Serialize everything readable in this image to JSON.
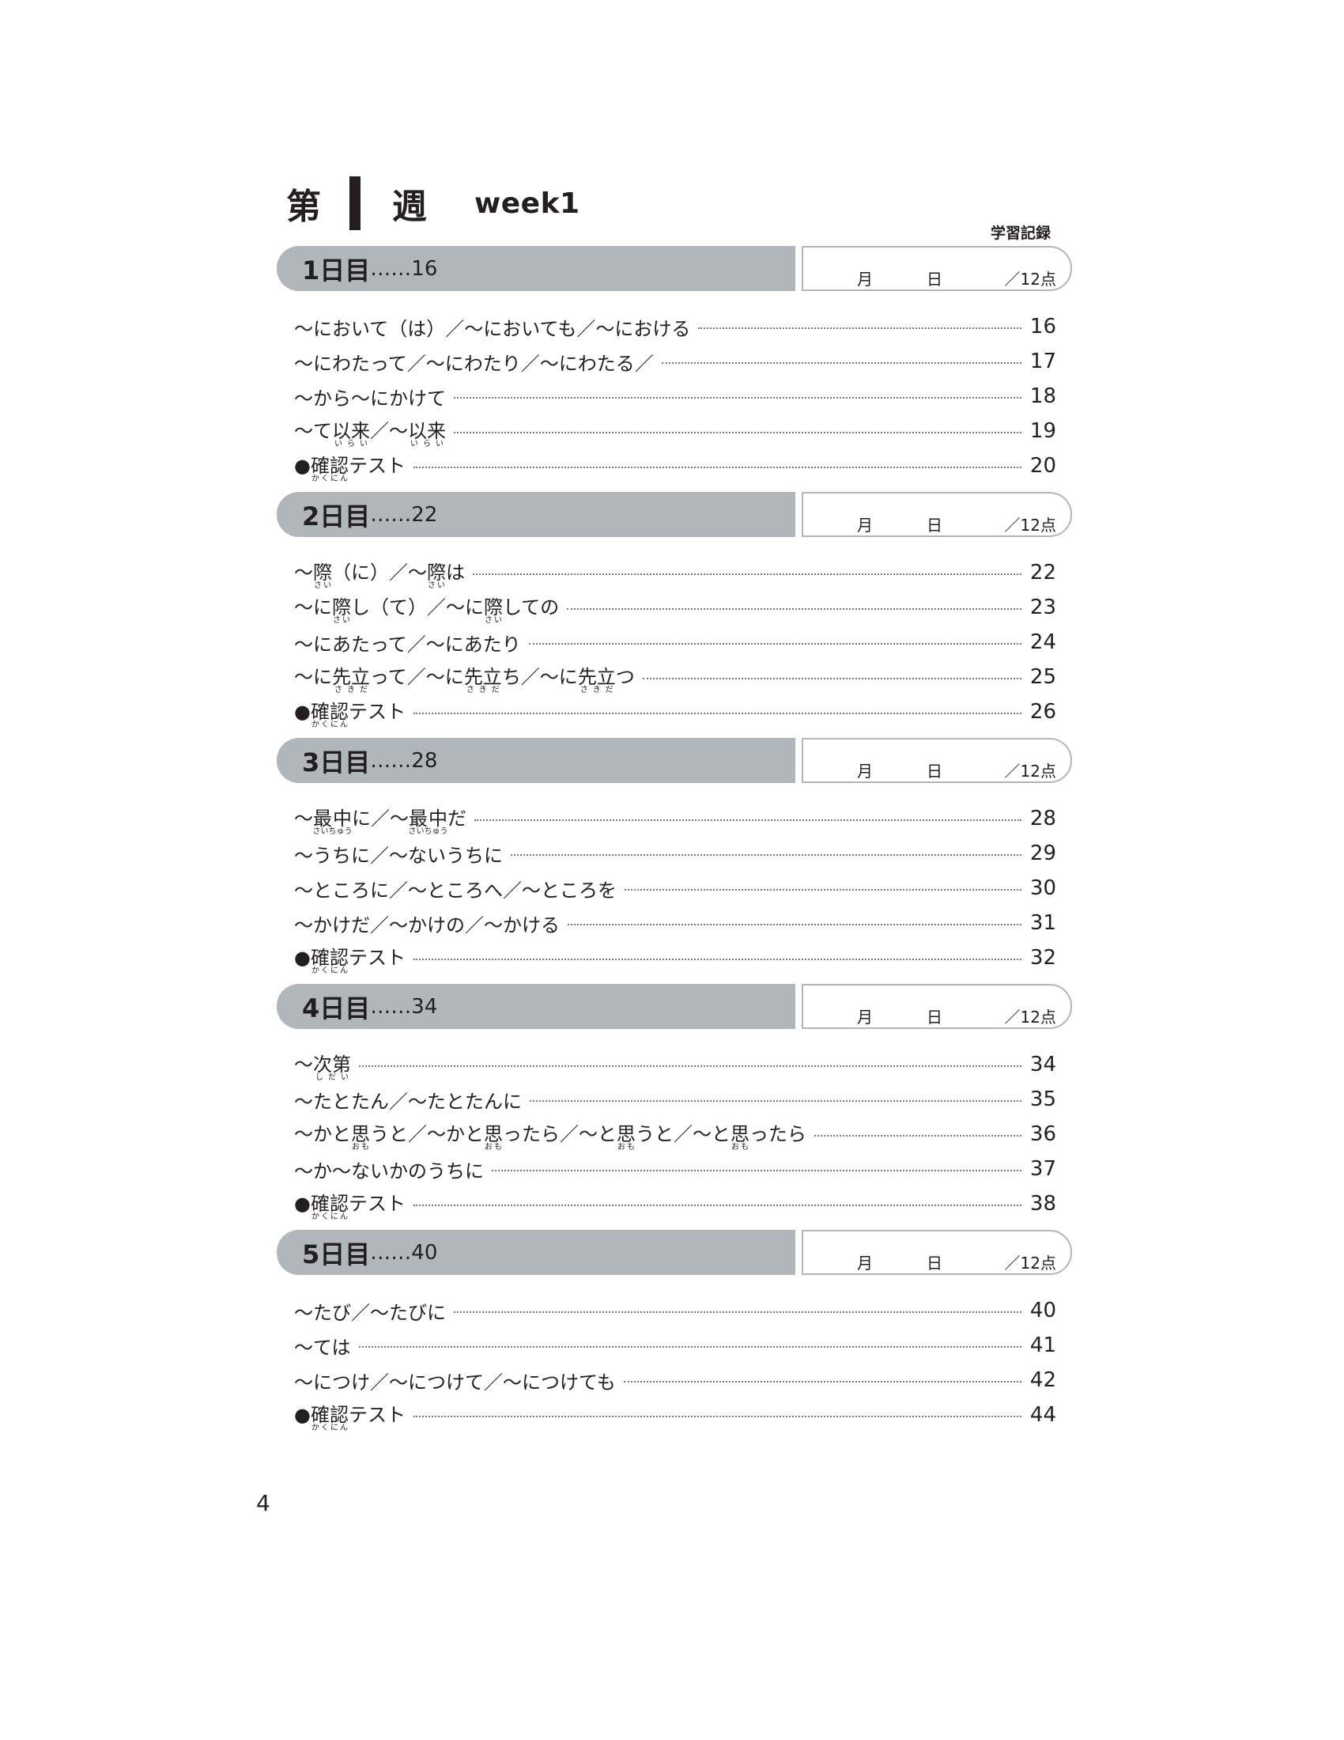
{
  "header": {
    "dai": "第",
    "week_num": "1",
    "shu": "週",
    "week_label": "week1",
    "record_label": "学習記録"
  },
  "record": {
    "month": "月",
    "day": "日",
    "score": "／12点"
  },
  "sections": [
    {
      "day": "1日目",
      "dots": "……",
      "page": "16",
      "items": [
        {
          "parts": [
            [
              "〜において（は）／〜においても／〜における",
              ""
            ]
          ],
          "page": "16"
        },
        {
          "parts": [
            [
              "〜にわたって／〜にわたり／〜にわたる／",
              ""
            ]
          ],
          "page": "17"
        },
        {
          "parts": [
            [
              "〜から〜にかけて",
              ""
            ]
          ],
          "page": "18"
        },
        {
          "parts": [
            [
              "〜て",
              ""
            ],
            [
              "以来",
              "いらい"
            ],
            [
              "／〜",
              ""
            ],
            [
              "以来",
              "いらい"
            ]
          ],
          "page": "19"
        },
        {
          "parts": [
            [
              "●",
              ""
            ],
            [
              "確認",
              "かくにん"
            ],
            [
              "テスト",
              ""
            ]
          ],
          "page": "20"
        }
      ]
    },
    {
      "day": "2日目",
      "dots": "……",
      "page": "22",
      "items": [
        {
          "parts": [
            [
              "〜",
              ""
            ],
            [
              "際",
              "さい"
            ],
            [
              "（に）／〜",
              ""
            ],
            [
              "際",
              "さい"
            ],
            [
              "は",
              ""
            ]
          ],
          "page": "22"
        },
        {
          "parts": [
            [
              "〜に",
              ""
            ],
            [
              "際",
              "さい"
            ],
            [
              "し（て）／〜に",
              ""
            ],
            [
              "際",
              "さい"
            ],
            [
              "しての",
              ""
            ]
          ],
          "page": "23"
        },
        {
          "parts": [
            [
              "〜にあたって／〜にあたり",
              ""
            ]
          ],
          "page": "24"
        },
        {
          "parts": [
            [
              "〜に",
              ""
            ],
            [
              "先立",
              "さきだ"
            ],
            [
              "って／〜に",
              ""
            ],
            [
              "先立",
              "さきだ"
            ],
            [
              "ち／〜に",
              ""
            ],
            [
              "先立",
              "さきだ"
            ],
            [
              "つ",
              ""
            ]
          ],
          "page": "25"
        },
        {
          "parts": [
            [
              "●",
              ""
            ],
            [
              "確認",
              "かくにん"
            ],
            [
              "テスト",
              ""
            ]
          ],
          "page": "26"
        }
      ]
    },
    {
      "day": "3日目",
      "dots": "……",
      "page": "28",
      "items": [
        {
          "parts": [
            [
              "〜",
              ""
            ],
            [
              "最中",
              "さいちゅう"
            ],
            [
              "に／〜",
              ""
            ],
            [
              "最中",
              "さいちゅう"
            ],
            [
              "だ",
              ""
            ]
          ],
          "page": "28"
        },
        {
          "parts": [
            [
              "〜うちに／〜ないうちに",
              ""
            ]
          ],
          "page": "29"
        },
        {
          "parts": [
            [
              "〜ところに／〜ところへ／〜ところを",
              ""
            ]
          ],
          "page": "30"
        },
        {
          "parts": [
            [
              "〜かけだ／〜かけの／〜かける",
              ""
            ]
          ],
          "page": "31"
        },
        {
          "parts": [
            [
              "●",
              ""
            ],
            [
              "確認",
              "かくにん"
            ],
            [
              "テスト",
              ""
            ]
          ],
          "page": "32"
        }
      ]
    },
    {
      "day": "4日目",
      "dots": "……",
      "page": "34",
      "items": [
        {
          "parts": [
            [
              "〜",
              ""
            ],
            [
              "次第",
              "しだい"
            ]
          ],
          "page": "34"
        },
        {
          "parts": [
            [
              "〜たとたん／〜たとたんに",
              ""
            ]
          ],
          "page": "35"
        },
        {
          "parts": [
            [
              "〜かと",
              ""
            ],
            [
              "思",
              "おも"
            ],
            [
              "うと／〜かと",
              ""
            ],
            [
              "思",
              "おも"
            ],
            [
              "ったら／〜と",
              ""
            ],
            [
              "思",
              "おも"
            ],
            [
              "うと／〜と",
              ""
            ],
            [
              "思",
              "おも"
            ],
            [
              "ったら",
              ""
            ]
          ],
          "page": "36"
        },
        {
          "parts": [
            [
              "〜か〜ないかのうちに",
              ""
            ]
          ],
          "page": "37"
        },
        {
          "parts": [
            [
              "●",
              ""
            ],
            [
              "確認",
              "かくにん"
            ],
            [
              "テスト",
              ""
            ]
          ],
          "page": "38"
        }
      ]
    },
    {
      "day": "5日目",
      "dots": "……",
      "page": "40",
      "items": [
        {
          "parts": [
            [
              "〜たび／〜たびに",
              ""
            ]
          ],
          "page": "40"
        },
        {
          "parts": [
            [
              "〜ては",
              ""
            ]
          ],
          "page": "41"
        },
        {
          "parts": [
            [
              "〜につけ／〜につけて／〜につけても",
              ""
            ]
          ],
          "page": "42"
        },
        {
          "parts": [
            [
              "●",
              ""
            ],
            [
              "確認",
              "かくにん"
            ],
            [
              "テスト",
              ""
            ]
          ],
          "page": "44"
        }
      ]
    }
  ],
  "page_number": "4"
}
